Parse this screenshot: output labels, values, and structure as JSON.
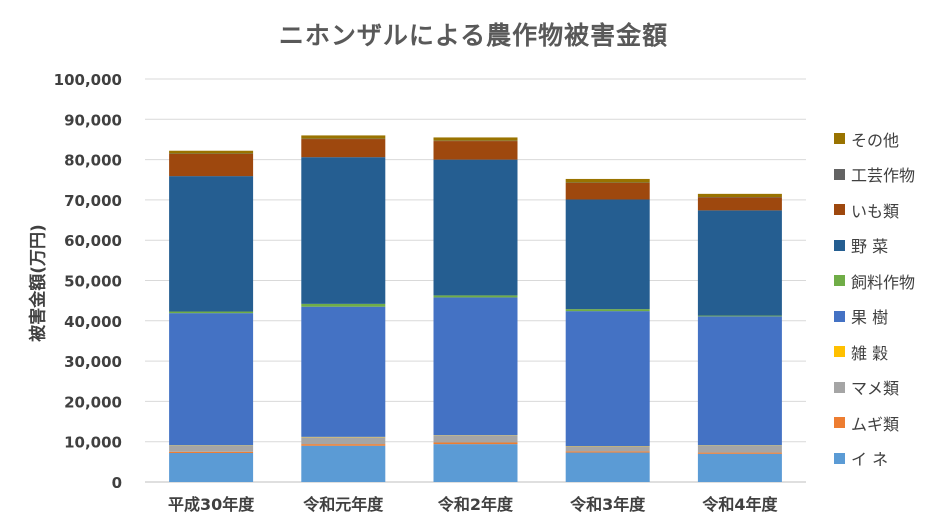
{
  "chart_data": {
    "type": "bar",
    "stacked": true,
    "title": "ニホンザルによる農作物被害金額",
    "xlabel": "",
    "ylabel": "被害金額(万円)",
    "ylim": [
      0,
      100000
    ],
    "yticks": [
      "0",
      "10,000",
      "20,000",
      "30,000",
      "40,000",
      "50,000",
      "60,000",
      "70,000",
      "80,000",
      "90,000",
      "100,000"
    ],
    "grid": true,
    "legend_position": "right",
    "categories": [
      "平成30年度",
      "令和元年度",
      "令和2年度",
      "令和3年度",
      "令和4年度"
    ],
    "series": [
      {
        "name": "イ ネ",
        "color": "#5b9bd5",
        "values": [
          7200,
          9000,
          9400,
          7300,
          7000
        ]
      },
      {
        "name": "ムギ類",
        "color": "#ed7d31",
        "values": [
          300,
          400,
          400,
          300,
          300
        ]
      },
      {
        "name": "マメ類",
        "color": "#a5a5a5",
        "values": [
          1500,
          1700,
          1700,
          1200,
          1700
        ]
      },
      {
        "name": "雑 穀",
        "color": "#ffc000",
        "values": [
          100,
          100,
          100,
          100,
          100
        ]
      },
      {
        "name": "果 樹",
        "color": "#4472c4",
        "values": [
          32800,
          32300,
          34200,
          33500,
          32000
        ]
      },
      {
        "name": "飼料作物",
        "color": "#70ad47",
        "values": [
          400,
          700,
          500,
          500,
          200
        ]
      },
      {
        "name": "野 菜",
        "color": "#255e91",
        "values": [
          33600,
          36400,
          33700,
          27200,
          26100
        ]
      },
      {
        "name": "いも類",
        "color": "#9e480e",
        "values": [
          5500,
          4500,
          4600,
          4100,
          3200
        ]
      },
      {
        "name": "工芸作物",
        "color": "#636363",
        "values": [
          100,
          100,
          100,
          100,
          100
        ]
      },
      {
        "name": "その他",
        "color": "#997300",
        "values": [
          700,
          800,
          800,
          900,
          800
        ]
      }
    ]
  }
}
